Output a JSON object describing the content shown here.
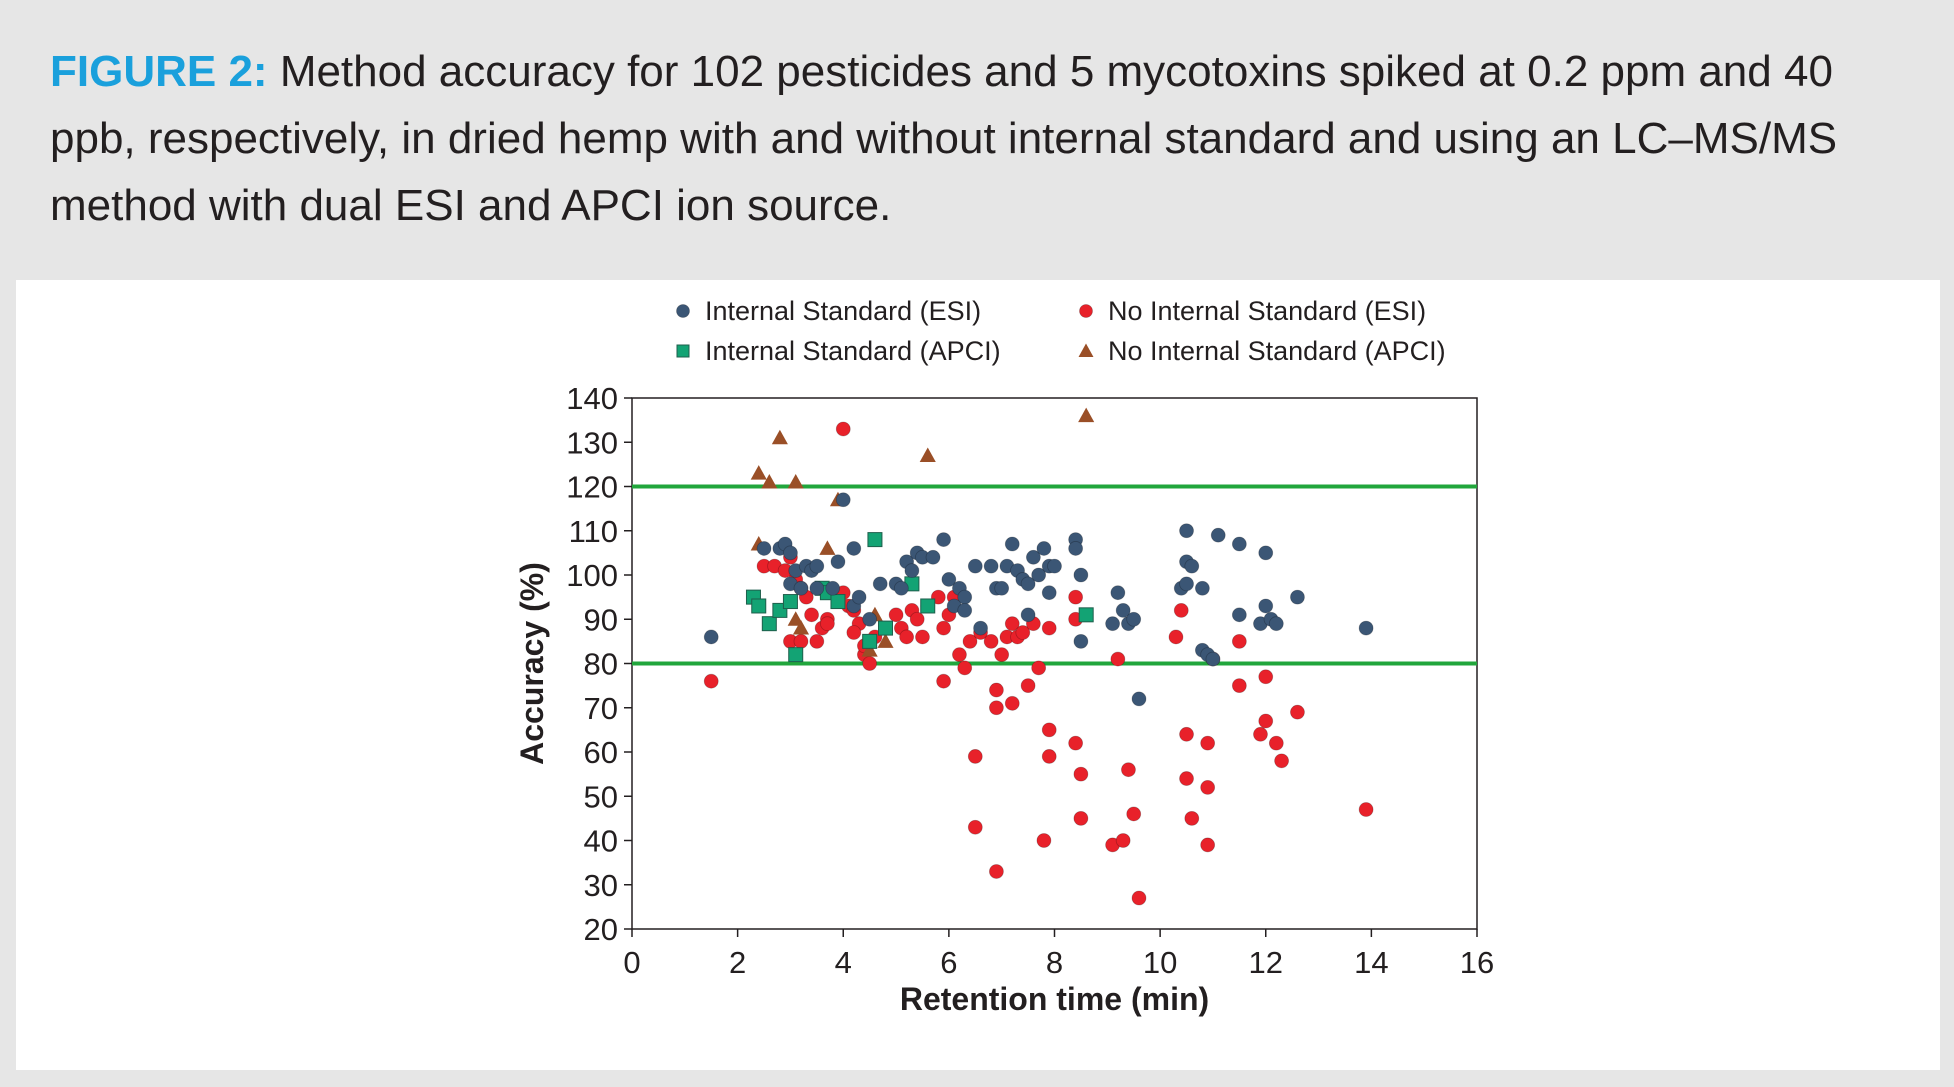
{
  "figure": {
    "label": "FIGURE 2:",
    "caption": "Method accuracy for 102 pesticides and 5 mycotoxins spiked at 0.2 ppm and 40 ppb, respectively, in dried hemp with and without internal standard and using an LC–MS/MS method with dual ESI and APCI ion source."
  },
  "colors": {
    "is_esi": "#3b5675",
    "is_apci": "#13a374",
    "nois_esi": "#e8212a",
    "nois_apci": "#9a4f27",
    "limit_lines": "#21a63c"
  },
  "chart_data": {
    "type": "scatter",
    "title": "",
    "xlabel": "Retention time (min)",
    "ylabel": "Accuracy (%)",
    "xlim": [
      0,
      16
    ],
    "ylim": [
      20,
      140
    ],
    "xticks": [
      0,
      2,
      4,
      6,
      8,
      10,
      12,
      14,
      16
    ],
    "yticks": [
      20,
      30,
      40,
      50,
      60,
      70,
      80,
      90,
      100,
      110,
      120,
      130,
      140
    ],
    "grid": false,
    "legend": "top",
    "reference_lines": [
      80,
      120
    ],
    "series": [
      {
        "name": "Internal Standard (ESI)",
        "marker": "circle",
        "color": "#3b5675",
        "points": [
          [
            1.5,
            86
          ],
          [
            2.5,
            106
          ],
          [
            2.8,
            106
          ],
          [
            2.9,
            107
          ],
          [
            3.0,
            105
          ],
          [
            3.1,
            101
          ],
          [
            3.3,
            102
          ],
          [
            3.4,
            101
          ],
          [
            3.5,
            102
          ],
          [
            3.0,
            98
          ],
          [
            3.2,
            97
          ],
          [
            3.5,
            97
          ],
          [
            3.8,
            97
          ],
          [
            3.9,
            103
          ],
          [
            4.0,
            117
          ],
          [
            4.2,
            106
          ],
          [
            4.2,
            93
          ],
          [
            4.3,
            95
          ],
          [
            4.5,
            90
          ],
          [
            4.7,
            98
          ],
          [
            5.0,
            98
          ],
          [
            5.1,
            97
          ],
          [
            5.2,
            103
          ],
          [
            5.3,
            101
          ],
          [
            5.4,
            105
          ],
          [
            5.5,
            104
          ],
          [
            5.7,
            104
          ],
          [
            5.9,
            108
          ],
          [
            6.0,
            99
          ],
          [
            6.2,
            97
          ],
          [
            6.3,
            95
          ],
          [
            6.1,
            93
          ],
          [
            6.3,
            92
          ],
          [
            6.5,
            102
          ],
          [
            6.6,
            88
          ],
          [
            6.8,
            102
          ],
          [
            6.9,
            97
          ],
          [
            7.0,
            97
          ],
          [
            7.1,
            102
          ],
          [
            7.2,
            107
          ],
          [
            7.3,
            101
          ],
          [
            7.4,
            99
          ],
          [
            7.5,
            98
          ],
          [
            7.6,
            104
          ],
          [
            7.7,
            100
          ],
          [
            7.8,
            106
          ],
          [
            7.9,
            102
          ],
          [
            7.9,
            96
          ],
          [
            8.0,
            102
          ],
          [
            8.4,
            108
          ],
          [
            8.4,
            106
          ],
          [
            8.5,
            100
          ],
          [
            8.5,
            85
          ],
          [
            7.5,
            91
          ],
          [
            9.1,
            89
          ],
          [
            9.2,
            96
          ],
          [
            9.3,
            92
          ],
          [
            9.4,
            89
          ],
          [
            9.5,
            90
          ],
          [
            9.6,
            72
          ],
          [
            10.4,
            97
          ],
          [
            10.5,
            103
          ],
          [
            10.5,
            98
          ],
          [
            10.5,
            110
          ],
          [
            10.6,
            102
          ],
          [
            10.8,
            97
          ],
          [
            10.8,
            83
          ],
          [
            10.9,
            82
          ],
          [
            11.0,
            81
          ],
          [
            11.1,
            109
          ],
          [
            11.5,
            107
          ],
          [
            11.5,
            91
          ],
          [
            12.0,
            105
          ],
          [
            12.0,
            93
          ],
          [
            11.9,
            89
          ],
          [
            12.1,
            90
          ],
          [
            12.2,
            89
          ],
          [
            12.6,
            95
          ],
          [
            13.9,
            88
          ]
        ]
      },
      {
        "name": "Internal Standard (APCI)",
        "marker": "square",
        "color": "#13a374",
        "points": [
          [
            2.3,
            95
          ],
          [
            2.4,
            93
          ],
          [
            2.6,
            89
          ],
          [
            2.8,
            92
          ],
          [
            3.0,
            94
          ],
          [
            3.1,
            82
          ],
          [
            3.6,
            97
          ],
          [
            3.7,
            96
          ],
          [
            3.9,
            94
          ],
          [
            4.5,
            85
          ],
          [
            4.6,
            108
          ],
          [
            4.8,
            88
          ],
          [
            5.3,
            98
          ],
          [
            5.6,
            93
          ],
          [
            8.6,
            91
          ]
        ]
      },
      {
        "name": "No Internal Standard (ESI)",
        "marker": "circle",
        "color": "#e8212a",
        "points": [
          [
            1.5,
            76
          ],
          [
            2.5,
            102
          ],
          [
            2.7,
            102
          ],
          [
            2.9,
            101
          ],
          [
            3.0,
            104
          ],
          [
            3.1,
            99
          ],
          [
            3.2,
            97
          ],
          [
            3.3,
            95
          ],
          [
            3.4,
            91
          ],
          [
            3.6,
            88
          ],
          [
            3.7,
            90
          ],
          [
            3.8,
            96
          ],
          [
            4.0,
            96
          ],
          [
            4.1,
            93
          ],
          [
            4.2,
            92
          ],
          [
            4.3,
            89
          ],
          [
            4.4,
            82
          ],
          [
            4.5,
            80
          ],
          [
            4.0,
            133
          ],
          [
            3.0,
            85
          ],
          [
            3.2,
            85
          ],
          [
            3.5,
            85
          ],
          [
            3.7,
            89
          ],
          [
            4.2,
            87
          ],
          [
            4.4,
            84
          ],
          [
            4.6,
            86
          ],
          [
            5.0,
            91
          ],
          [
            5.1,
            88
          ],
          [
            5.2,
            86
          ],
          [
            5.3,
            92
          ],
          [
            5.4,
            90
          ],
          [
            5.5,
            86
          ],
          [
            5.6,
            93
          ],
          [
            5.8,
            95
          ],
          [
            5.9,
            88
          ],
          [
            6.0,
            91
          ],
          [
            6.1,
            95
          ],
          [
            6.2,
            82
          ],
          [
            6.3,
            79
          ],
          [
            6.4,
            85
          ],
          [
            6.6,
            87
          ],
          [
            5.9,
            76
          ],
          [
            6.8,
            85
          ],
          [
            7.0,
            82
          ],
          [
            7.1,
            86
          ],
          [
            7.2,
            89
          ],
          [
            7.3,
            86
          ],
          [
            7.4,
            87
          ],
          [
            7.6,
            89
          ],
          [
            7.7,
            79
          ],
          [
            7.9,
            88
          ],
          [
            6.9,
            74
          ],
          [
            7.2,
            71
          ],
          [
            6.9,
            70
          ],
          [
            7.5,
            75
          ],
          [
            6.5,
            59
          ],
          [
            7.9,
            59
          ],
          [
            7.9,
            65
          ],
          [
            8.4,
            62
          ],
          [
            8.5,
            55
          ],
          [
            8.4,
            95
          ],
          [
            8.4,
            90
          ],
          [
            9.2,
            81
          ],
          [
            8.5,
            45
          ],
          [
            6.5,
            43
          ],
          [
            7.8,
            40
          ],
          [
            6.9,
            33
          ],
          [
            9.1,
            39
          ],
          [
            9.3,
            40
          ],
          [
            9.5,
            46
          ],
          [
            9.4,
            56
          ],
          [
            9.6,
            27
          ],
          [
            10.4,
            92
          ],
          [
            10.3,
            86
          ],
          [
            11.0,
            81
          ],
          [
            11.5,
            85
          ],
          [
            11.5,
            75
          ],
          [
            10.5,
            64
          ],
          [
            10.5,
            54
          ],
          [
            10.6,
            45
          ],
          [
            10.9,
            62
          ],
          [
            10.9,
            52
          ],
          [
            10.9,
            39
          ],
          [
            12.0,
            77
          ],
          [
            12.0,
            67
          ],
          [
            11.9,
            64
          ],
          [
            12.2,
            62
          ],
          [
            12.3,
            58
          ],
          [
            12.6,
            69
          ],
          [
            13.9,
            47
          ]
        ]
      },
      {
        "name": "No Internal Standard (APCI)",
        "marker": "triangle",
        "color": "#9a4f27",
        "points": [
          [
            2.4,
            123
          ],
          [
            2.6,
            121
          ],
          [
            2.8,
            131
          ],
          [
            3.1,
            121
          ],
          [
            2.4,
            107
          ],
          [
            3.9,
            117
          ],
          [
            3.7,
            106
          ],
          [
            3.1,
            90
          ],
          [
            3.2,
            88
          ],
          [
            4.5,
            83
          ],
          [
            4.6,
            91
          ],
          [
            4.8,
            85
          ],
          [
            5.6,
            127
          ],
          [
            8.6,
            136
          ]
        ]
      }
    ]
  }
}
